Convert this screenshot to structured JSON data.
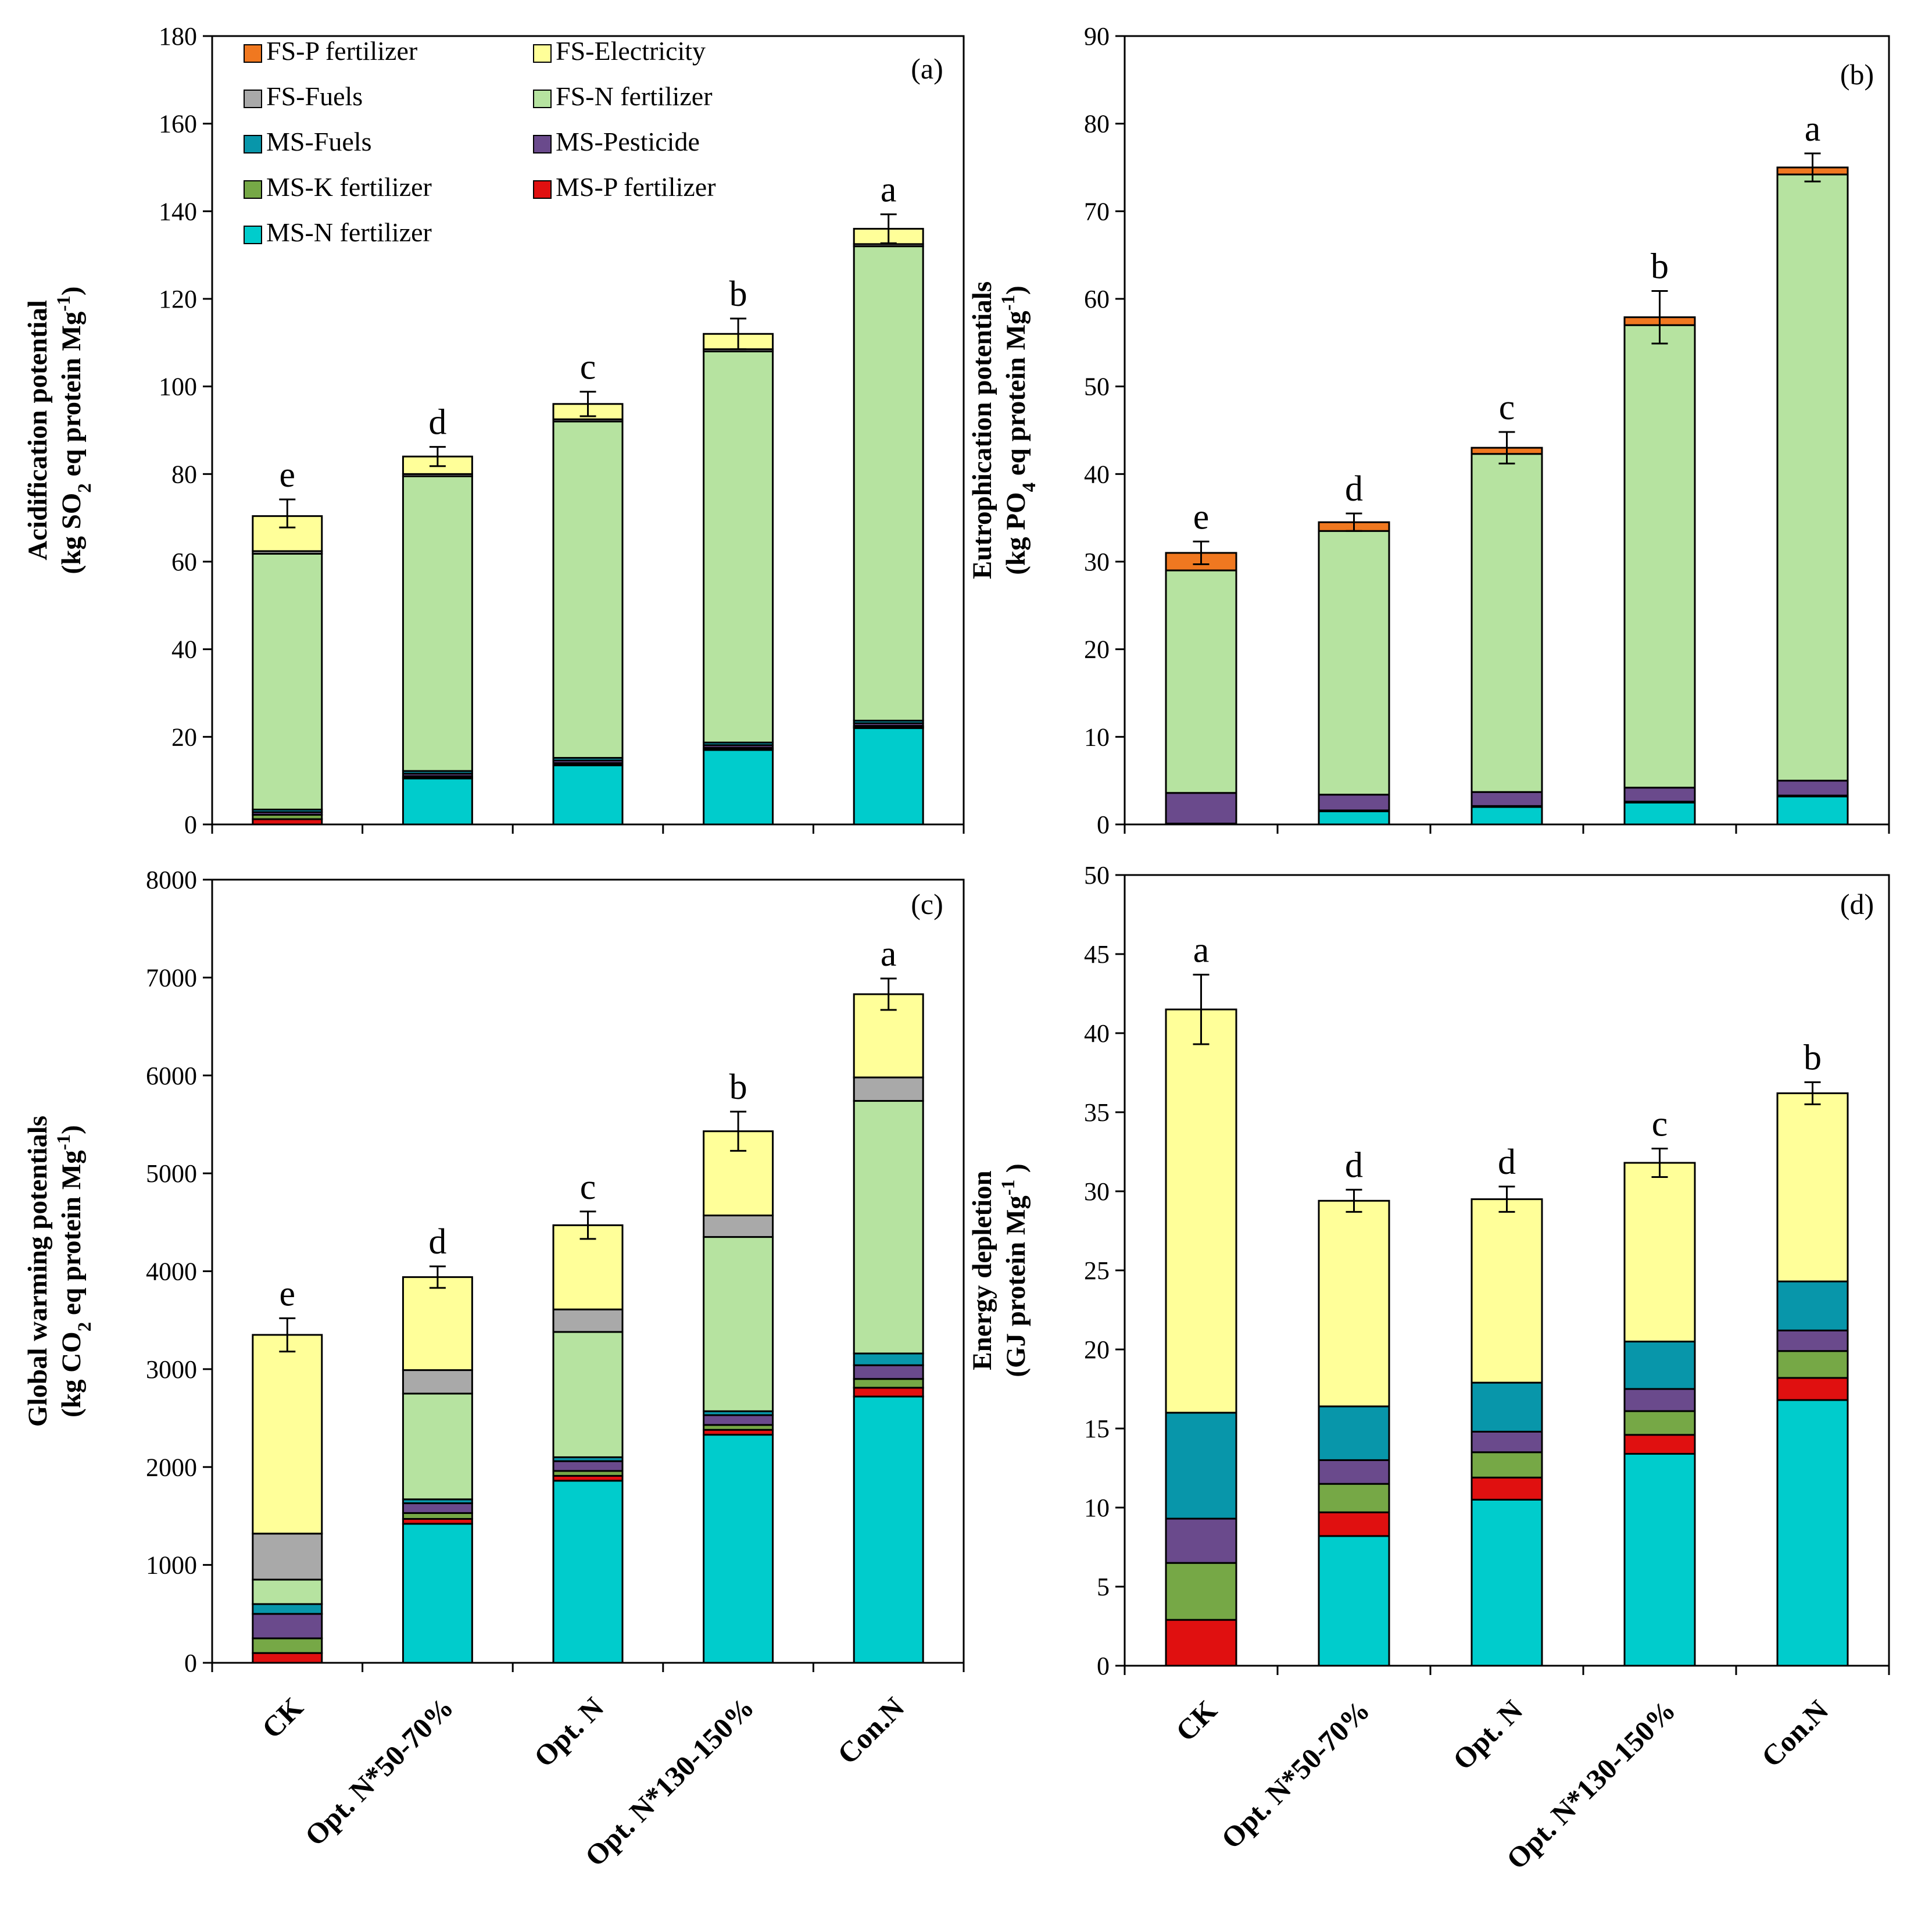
{
  "categories": [
    "CK",
    "Opt. N*50-70%",
    "Opt. N",
    "Opt. N*130-150%",
    "Con.N"
  ],
  "components": [
    {
      "key": "ms_n",
      "name": "MS-N fertilizer",
      "color": "#00CCCC"
    },
    {
      "key": "ms_p",
      "name": "MS-P fertilizer",
      "color": "#E01010"
    },
    {
      "key": "ms_k",
      "name": "MS-K fertilizer",
      "color": "#76A846"
    },
    {
      "key": "ms_pest",
      "name": "MS-Pesticide",
      "color": "#6A4A8C"
    },
    {
      "key": "ms_fuel",
      "name": "MS-Fuels",
      "color": "#0896AA"
    },
    {
      "key": "fs_n",
      "name": "FS-N fertilizer",
      "color": "#B6E3A0"
    },
    {
      "key": "fs_fuel",
      "name": "FS-Fuels",
      "color": "#A9A9A9"
    },
    {
      "key": "fs_elec",
      "name": "FS-Electricity",
      "color": "#FFFF99"
    },
    {
      "key": "fs_p",
      "name": "FS-P fertilizer",
      "color": "#F07820"
    }
  ],
  "legend": {
    "rows": [
      [
        "FS-P fertilizer",
        "FS-Electricity"
      ],
      [
        "FS-Fuels",
        "FS-N fertilizer"
      ],
      [
        "MS-Fuels",
        "MS-Pesticide"
      ],
      [
        "MS-K fertilizer",
        "MS-P fertilizer"
      ],
      [
        "MS-N fertilizer"
      ]
    ]
  },
  "chart_data": [
    {
      "type": "bar",
      "stacked": true,
      "panel": "(a)",
      "ylabel_line1": "Acidification potential",
      "ylabel_line2_parts": [
        {
          "t": "(kg SO",
          "sub": false
        },
        {
          "t": "2",
          "sub": true
        },
        {
          "t": " eq  protein  Mg",
          "sub": false
        },
        {
          "t": "-1",
          "sup": true
        },
        {
          "t": ")",
          "sub": false
        }
      ],
      "ylim": [
        0,
        180
      ],
      "yticks": [
        0,
        20,
        40,
        60,
        80,
        100,
        120,
        140,
        160,
        180
      ],
      "categories": [
        "CK",
        "Opt. N*50-70%",
        "Opt. N",
        "Opt. N*130-150%",
        "Con.N"
      ],
      "series": [
        {
          "name": "MS-N fertilizer",
          "values": [
            0,
            10.5,
            13.5,
            17.0,
            22.0
          ]
        },
        {
          "name": "MS-P fertilizer",
          "values": [
            1.2,
            0.2,
            0.2,
            0.2,
            0.2
          ]
        },
        {
          "name": "MS-K fertilizer",
          "values": [
            1.0,
            0.3,
            0.3,
            0.3,
            0.3
          ]
        },
        {
          "name": "MS-Pesticide",
          "values": [
            0.6,
            0.6,
            0.6,
            0.6,
            0.6
          ]
        },
        {
          "name": "MS-Fuels",
          "values": [
            0.6,
            0.6,
            0.6,
            0.6,
            0.6
          ]
        },
        {
          "name": "FS-N fertilizer",
          "values": [
            58.4,
            67.3,
            76.8,
            89.3,
            108.3
          ]
        },
        {
          "name": "FS-Fuels",
          "values": [
            0.6,
            0.5,
            0.5,
            0.5,
            0.5
          ]
        },
        {
          "name": "FS-Electricity",
          "values": [
            8.0,
            4.0,
            3.5,
            3.5,
            3.5
          ]
        },
        {
          "name": "FS-P fertilizer",
          "values": [
            0,
            0,
            0,
            0,
            0
          ]
        }
      ],
      "totals": [
        71,
        84,
        96,
        112,
        136
      ],
      "errors": [
        3.2,
        2.2,
        2.8,
        3.5,
        3.3
      ],
      "significance": [
        "e",
        "d",
        "c",
        "b",
        "a"
      ]
    },
    {
      "type": "bar",
      "stacked": true,
      "panel": "(b)",
      "ylabel_line1": "Eutrophication  potentials",
      "ylabel_line2_parts": [
        {
          "t": "(kg PO",
          "sub": false
        },
        {
          "t": "4",
          "sub": true
        },
        {
          "t": " eq  protein  Mg",
          "sub": false
        },
        {
          "t": "-1",
          "sup": true
        },
        {
          "t": ")",
          "sub": false
        }
      ],
      "ylim": [
        0,
        90
      ],
      "yticks": [
        0,
        10,
        20,
        30,
        40,
        50,
        60,
        70,
        80,
        90
      ],
      "categories": [
        "CK",
        "Opt. N*50-70%",
        "Opt. N",
        "Opt. N*130-150%",
        "Con.N"
      ],
      "series": [
        {
          "name": "MS-N fertilizer",
          "values": [
            0,
            1.5,
            2.0,
            2.5,
            3.2
          ]
        },
        {
          "name": "MS-P fertilizer",
          "values": [
            0.1,
            0.1,
            0.1,
            0.1,
            0.1
          ]
        },
        {
          "name": "MS-K fertilizer",
          "values": [
            0,
            0,
            0,
            0,
            0
          ]
        },
        {
          "name": "MS-Pesticide",
          "values": [
            3.5,
            1.8,
            1.6,
            1.6,
            1.7
          ]
        },
        {
          "name": "MS-Fuels",
          "values": [
            0,
            0,
            0,
            0,
            0
          ]
        },
        {
          "name": "FS-N fertilizer",
          "values": [
            25.4,
            30.1,
            38.6,
            52.8,
            69.2
          ]
        },
        {
          "name": "FS-Fuels",
          "values": [
            0,
            0,
            0,
            0,
            0
          ]
        },
        {
          "name": "FS-Electricity",
          "values": [
            0,
            0,
            0,
            0,
            0
          ]
        },
        {
          "name": "FS-P fertilizer",
          "values": [
            2.0,
            1.0,
            0.7,
            0.9,
            0.8
          ]
        }
      ],
      "totals": [
        31,
        34.5,
        43,
        57.9,
        75
      ],
      "errors": [
        1.3,
        1.0,
        1.8,
        3.0,
        1.6
      ],
      "significance": [
        "e",
        "d",
        "c",
        "b",
        "a"
      ]
    },
    {
      "type": "bar",
      "stacked": true,
      "panel": "(c)",
      "ylabel_line1": "Global warming potentials",
      "ylabel_line2_parts": [
        {
          "t": "(kg CO",
          "sub": false
        },
        {
          "t": "2",
          "sub": true
        },
        {
          "t": " eq  protein  Mg",
          "sub": false
        },
        {
          "t": "-1",
          "sup": true
        },
        {
          "t": ")",
          "sub": false
        }
      ],
      "ylim": [
        0,
        8000
      ],
      "yticks": [
        0,
        1000,
        2000,
        3000,
        4000,
        5000,
        6000,
        7000,
        8000
      ],
      "categories": [
        "CK",
        "Opt. N*50-70%",
        "Opt. N",
        "Opt. N*130-150%",
        "Con.N"
      ],
      "series": [
        {
          "name": "MS-N fertilizer",
          "values": [
            0,
            1420,
            1860,
            2330,
            2720
          ]
        },
        {
          "name": "MS-P fertilizer",
          "values": [
            100,
            50,
            50,
            50,
            90
          ]
        },
        {
          "name": "MS-K fertilizer",
          "values": [
            150,
            60,
            50,
            50,
            90
          ]
        },
        {
          "name": "MS-Pesticide",
          "values": [
            250,
            100,
            100,
            100,
            140
          ]
        },
        {
          "name": "MS-Fuels",
          "values": [
            100,
            40,
            40,
            40,
            120
          ]
        },
        {
          "name": "FS-N fertilizer",
          "values": [
            250,
            1080,
            1280,
            1780,
            2580
          ]
        },
        {
          "name": "FS-Fuels",
          "values": [
            470,
            240,
            230,
            220,
            240
          ]
        },
        {
          "name": "FS-Electricity",
          "values": [
            2030,
            950,
            860,
            860,
            850
          ]
        },
        {
          "name": "FS-P fertilizer",
          "values": [
            0,
            0,
            0,
            0,
            0
          ]
        }
      ],
      "totals": [
        3350,
        3940,
        4470,
        5430,
        6830
      ],
      "errors": [
        170,
        110,
        140,
        200,
        160
      ],
      "significance": [
        "e",
        "d",
        "c",
        "b",
        "a"
      ]
    },
    {
      "type": "bar",
      "stacked": true,
      "panel": "(d)",
      "ylabel_line1": "Energy depletion",
      "ylabel_line2_parts": [
        {
          "t": "(GJ protein Mg",
          "sub": false
        },
        {
          "t": "-1",
          "sup": true
        },
        {
          "t": " )",
          "sub": false
        }
      ],
      "ylim": [
        0,
        50
      ],
      "yticks": [
        0,
        5,
        10,
        15,
        20,
        25,
        30,
        35,
        40,
        45,
        50
      ],
      "categories": [
        "CK",
        "Opt. N*50-70%",
        "Opt. N",
        "Opt. N*130-150%",
        "Con.N"
      ],
      "series": [
        {
          "name": "MS-N fertilizer",
          "values": [
            0,
            8.2,
            10.5,
            13.4,
            16.8
          ]
        },
        {
          "name": "MS-P fertilizer",
          "values": [
            2.9,
            1.5,
            1.4,
            1.2,
            1.4
          ]
        },
        {
          "name": "MS-K fertilizer",
          "values": [
            3.6,
            1.8,
            1.6,
            1.5,
            1.7
          ]
        },
        {
          "name": "MS-Pesticide",
          "values": [
            2.8,
            1.5,
            1.3,
            1.4,
            1.3
          ]
        },
        {
          "name": "MS-Fuels",
          "values": [
            6.7,
            3.4,
            3.1,
            3.0,
            3.1
          ]
        },
        {
          "name": "FS-N fertilizer",
          "values": [
            0,
            0,
            0,
            0,
            0
          ]
        },
        {
          "name": "FS-Fuels",
          "values": [
            0,
            0,
            0,
            0,
            0
          ]
        },
        {
          "name": "FS-Electricity",
          "values": [
            25.5,
            13.0,
            11.6,
            11.3,
            11.9
          ]
        },
        {
          "name": "FS-P fertilizer",
          "values": [
            0,
            0,
            0,
            0,
            0
          ]
        }
      ],
      "totals": [
        41.5,
        29.4,
        29.5,
        31.8,
        36.2
      ],
      "errors": [
        2.2,
        0.7,
        0.8,
        0.9,
        0.7
      ],
      "significance": [
        "a",
        "d",
        "d",
        "c",
        "b"
      ]
    }
  ]
}
